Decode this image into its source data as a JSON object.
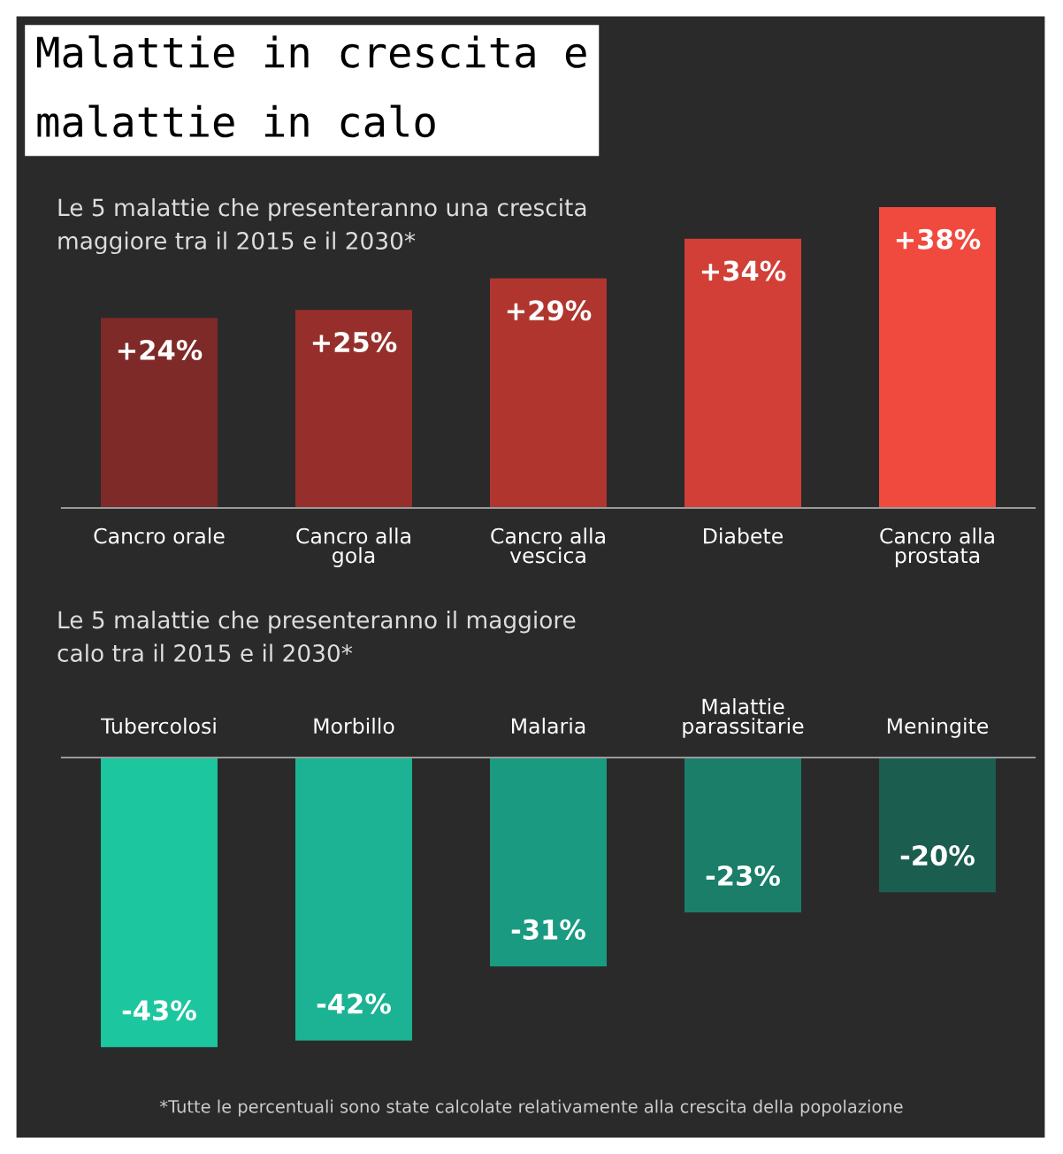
{
  "chart_data": [
    {
      "type": "bar",
      "title": "Malattie in crescita e\nmalattie in calo",
      "subtitle": "Le 5 malattie che presenteranno una crescita\nmaggiore tra il 2015 e il 2030*",
      "categories": [
        "Cancro orale",
        "Cancro alla\ngola",
        "Cancro alla\nvescica",
        "Diabete",
        "Cancro alla\nprostata"
      ],
      "values": [
        24,
        25,
        29,
        34,
        38
      ],
      "colors": [
        "#7e2a28",
        "#962f2b",
        "#b0352f",
        "#d23f36",
        "#f04a3e"
      ],
      "value_labels": [
        "+24%",
        "+25%",
        "+29%",
        "+34%",
        "+38%"
      ],
      "tick_labels": "x"
    },
    {
      "type": "bar",
      "subtitle": "Le 5 malattie che presenteranno il maggiore\ncalo tra il 2015 e il 2030*",
      "categories": [
        "Tubercolosi",
        "Morbillo",
        "Malaria",
        "Malattie\nparassitarie",
        "Meningite"
      ],
      "values": [
        -43,
        -42,
        -31,
        -23,
        -20
      ],
      "colors": [
        "#1cc69e",
        "#1bb393",
        "#1a9a80",
        "#1a7e69",
        "#1b5e50"
      ],
      "value_labels": [
        "-43%",
        "-42%",
        "-31%",
        "-23%",
        "-20%"
      ],
      "annotations": [
        "*Tutte le percentuali sono state calcolate relativamente alla crescita della popolazione"
      ],
      "tick_labels": "x"
    }
  ]
}
